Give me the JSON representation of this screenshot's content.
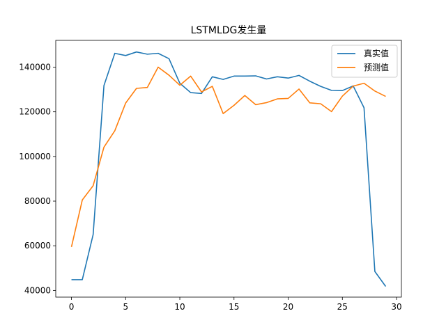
{
  "chart_data": {
    "type": "line",
    "title": "LSTMLDG发生量",
    "xlabel": "",
    "ylabel": "",
    "xlim": [
      -1.45,
      30.45
    ],
    "ylim": [
      37000,
      152000
    ],
    "xticks": [
      0,
      5,
      10,
      15,
      20,
      25,
      30
    ],
    "yticks": [
      40000,
      60000,
      80000,
      100000,
      120000,
      140000
    ],
    "grid": false,
    "legend_position": "top-right",
    "x": [
      0,
      1,
      2,
      3,
      4,
      5,
      6,
      7,
      8,
      9,
      10,
      11,
      12,
      13,
      14,
      15,
      16,
      17,
      18,
      19,
      20,
      21,
      22,
      23,
      24,
      25,
      26,
      27,
      28,
      29
    ],
    "series": [
      {
        "name": "真实值",
        "color": "#1f77b4",
        "values": [
          44800,
          44800,
          65000,
          131800,
          146200,
          145200,
          146800,
          145800,
          146200,
          143800,
          132800,
          128600,
          128200,
          135700,
          134500,
          136000,
          136000,
          136100,
          134700,
          135700,
          135100,
          136300,
          133700,
          131400,
          129600,
          129500,
          131600,
          121800,
          48500,
          41800
        ]
      },
      {
        "name": "预测值",
        "color": "#ff7f0e",
        "values": [
          59500,
          80500,
          86900,
          104200,
          111500,
          123900,
          130500,
          130900,
          140000,
          136400,
          131900,
          136000,
          128900,
          131400,
          119200,
          122900,
          127300,
          123200,
          124100,
          125800,
          126000,
          130200,
          124000,
          123600,
          120100,
          127000,
          131500,
          132800,
          129300,
          126900
        ]
      }
    ]
  }
}
